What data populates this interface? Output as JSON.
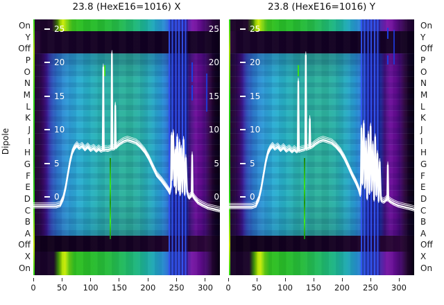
{
  "titles": {
    "left": "23.8 (HexE16=1016) X",
    "right": "23.8 (HexE16=1016) Y"
  },
  "y_axis_label": "Dipole",
  "row_labels": [
    "On",
    "Y",
    "Off",
    "P",
    "O",
    "N",
    "M",
    "L",
    "K",
    "J",
    "I",
    "H",
    "G",
    "F",
    "E",
    "D",
    "C",
    "B",
    "A",
    "Off",
    "X",
    "On"
  ],
  "value_tick_labels": [
    "25",
    "20",
    "15",
    "10",
    "5",
    "0"
  ],
  "x_tick_labels": [
    "0",
    "50",
    "100",
    "150",
    "200",
    "250",
    "300"
  ],
  "colors": {
    "background": "#ffffff",
    "overlay_curve": "#ffffff",
    "text": "#111111",
    "colormap_dark_to_bright": [
      "#070010",
      "#2a0538",
      "#6e0f9c",
      "#3c1d96",
      "#2b80d8",
      "#28adc2",
      "#2db39d",
      "#25ba46",
      "#84d411",
      "#c8ea08"
    ]
  },
  "chart_data": [
    {
      "type": "heatmap",
      "title": "23.8 (HexE16=1016) X",
      "x_range": [
        0,
        325
      ],
      "x_ticks": [
        0,
        50,
        100,
        150,
        200,
        250,
        300
      ],
      "rows_top_to_bottom": [
        "On",
        "Y",
        "Off",
        "P",
        "O",
        "N",
        "M",
        "L",
        "K",
        "J",
        "I",
        "H",
        "G",
        "F",
        "E",
        "D",
        "C",
        "B",
        "A",
        "Off",
        "X",
        "On"
      ],
      "value_axis_ticks": [
        25,
        20,
        15,
        10,
        5,
        0
      ],
      "legend_position": "none",
      "grid": false,
      "heatmap_description": "Rows On/X bright green-yellow-cyan-purple bands; rows Y/Off and lower Off dark purple-black; middle rows P-A bright cyan-teal-blue field with purple-black edges, blue vertical stripe burst near x=240-268, green vertical marks near x=123 and x=133",
      "overlay_line": {
        "x": [
          0,
          40,
          47,
          52,
          56,
          60,
          64,
          68,
          72,
          76,
          80,
          85,
          90,
          95,
          100,
          105,
          110,
          114,
          118,
          121,
          122,
          123,
          124,
          130,
          135,
          136,
          137,
          138,
          142,
          143,
          144,
          145,
          150,
          157,
          164,
          172,
          179,
          186,
          194,
          201,
          208,
          215,
          223,
          230,
          235,
          238,
          240,
          241,
          242,
          244,
          246,
          248,
          249,
          251,
          253,
          255,
          256,
          258,
          260,
          262,
          264,
          266,
          268,
          270,
          272,
          275,
          276,
          277,
          278,
          281,
          287,
          295,
          305,
          315,
          325
        ],
        "y": [
          -1.4,
          -1.4,
          -1.2,
          -0.3,
          1.2,
          3.2,
          5.2,
          6.6,
          7.3,
          7.7,
          7.3,
          7.6,
          7.1,
          7.5,
          7.0,
          7.3,
          6.9,
          7.2,
          6.9,
          7.0,
          19.3,
          7.0,
          7.1,
          7.0,
          7.2,
          7.2,
          21.3,
          7.2,
          7.3,
          13.6,
          7.4,
          7.5,
          7.9,
          8.3,
          8.5,
          8.3,
          8.1,
          7.6,
          6.8,
          5.8,
          4.5,
          3.3,
          2.5,
          1.7,
          1.1,
          0.6,
          1.5,
          9.1,
          2.7,
          9.5,
          1.7,
          7.0,
          0.6,
          8.9,
          1.1,
          8.1,
          0.4,
          7.2,
          0.8,
          8.5,
          0.4,
          5.8,
          0.8,
          0.1,
          -0.1,
          0.2,
          0.2,
          6.2,
          0.2,
          -0.2,
          -0.8,
          -1.2,
          -1.6,
          -1.8,
          -2.0
        ]
      },
      "features": {
        "green_vlines_x": [
          123,
          133
        ],
        "blue_stripe_burst_x": [
          236,
          269
        ],
        "purple_band_x": [
          269,
          302
        ]
      }
    },
    {
      "type": "heatmap",
      "title": "23.8 (HexE16=1016) Y",
      "x_range": [
        0,
        325
      ],
      "x_ticks": [
        0,
        50,
        100,
        150,
        200,
        250,
        300
      ],
      "rows_top_to_bottom": [
        "On",
        "Y",
        "Off",
        "P",
        "O",
        "N",
        "M",
        "L",
        "K",
        "J",
        "I",
        "H",
        "G",
        "F",
        "E",
        "D",
        "C",
        "B",
        "A",
        "Off",
        "X",
        "On"
      ],
      "value_axis_ticks": [
        25,
        20,
        15,
        10,
        5,
        0
      ],
      "legend_position": "none",
      "grid": false,
      "heatmap_description": "Same banded structure as X panel; blue/cyan vertical stripe burst near x=230-262, green vertical marks near x=121 and x=131",
      "overlay_line": {
        "x": [
          0,
          40,
          47,
          52,
          56,
          60,
          64,
          68,
          72,
          76,
          80,
          85,
          90,
          95,
          100,
          105,
          110,
          114,
          118,
          120,
          121,
          122,
          126,
          130,
          133,
          134,
          135,
          138,
          140,
          141,
          142,
          146,
          150,
          157,
          164,
          172,
          179,
          186,
          194,
          201,
          208,
          215,
          221,
          226,
          229,
          230,
          231,
          233,
          235,
          237,
          239,
          241,
          243,
          245,
          247,
          249,
          251,
          253,
          255,
          257,
          259,
          261,
          263,
          265,
          267,
          270,
          273,
          275,
          276,
          277,
          278,
          282,
          288,
          296,
          306,
          316,
          325
        ],
        "y": [
          -1.5,
          -1.5,
          -1.3,
          -0.4,
          1.1,
          3.1,
          5.1,
          6.5,
          7.2,
          7.6,
          7.2,
          7.5,
          7.0,
          7.4,
          6.9,
          7.2,
          6.8,
          7.1,
          6.8,
          6.9,
          17.2,
          6.9,
          7.0,
          7.1,
          7.2,
          21.1,
          7.2,
          7.3,
          7.3,
          11.6,
          7.4,
          7.6,
          7.9,
          8.3,
          8.5,
          8.3,
          8.1,
          7.6,
          6.8,
          5.8,
          4.5,
          3.2,
          2.2,
          1.2,
          0.3,
          1.8,
          10.2,
          2.0,
          10.9,
          1.4,
          8.3,
          -0.2,
          9.3,
          0.6,
          10.5,
          1.0,
          7.8,
          -0.4,
          8.9,
          0.3,
          6.4,
          -0.6,
          5.2,
          -0.4,
          -0.6,
          -0.7,
          -0.5,
          -0.3,
          -0.4,
          4.7,
          -0.4,
          -0.7,
          -1.0,
          -1.3,
          -1.5,
          -1.7,
          -1.9
        ]
      },
      "features": {
        "green_vlines_x": [
          121,
          131
        ],
        "blue_stripe_burst_x": [
          230,
          262
        ],
        "purple_band_x": [
          262,
          296
        ]
      }
    }
  ]
}
